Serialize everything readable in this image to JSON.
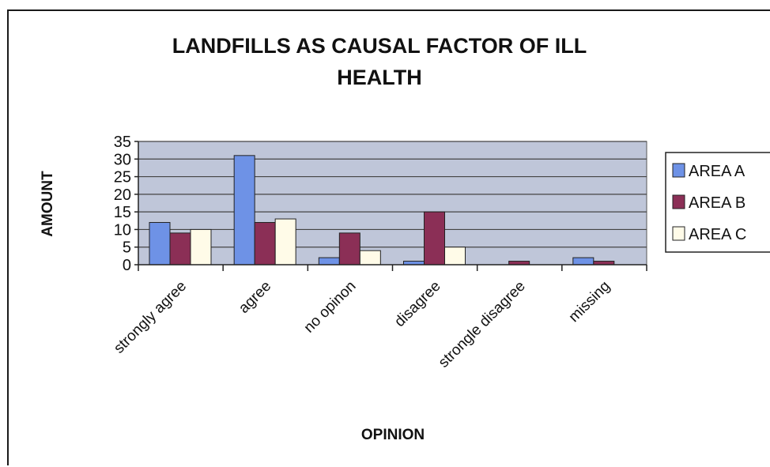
{
  "chart_data": {
    "type": "bar",
    "title_line1": "LANDFILLS AS CAUSAL FACTOR OF ILL",
    "title_line2": "HEALTH",
    "xlabel": "OPINION",
    "ylabel": "AMOUNT",
    "ylim": [
      0,
      35
    ],
    "yticks": [
      "0",
      "5",
      "10",
      "15",
      "20",
      "25",
      "30",
      "35"
    ],
    "categories": [
      "strongly agree",
      "agree",
      "no opinon",
      "disagree",
      "strongle disagree",
      "missing"
    ],
    "series": [
      {
        "name": "AREA A",
        "color": "#6e92e6",
        "values": [
          12,
          31,
          2,
          1,
          0,
          2
        ]
      },
      {
        "name": "AREA B",
        "color": "#8b2f56",
        "values": [
          9,
          12,
          9,
          15,
          1,
          1
        ]
      },
      {
        "name": "AREA C",
        "color": "#fffbe8",
        "values": [
          10,
          13,
          4,
          5,
          0,
          0
        ]
      }
    ],
    "plot_background": "#bfc6d9",
    "grid": true,
    "legend_position": "right"
  }
}
